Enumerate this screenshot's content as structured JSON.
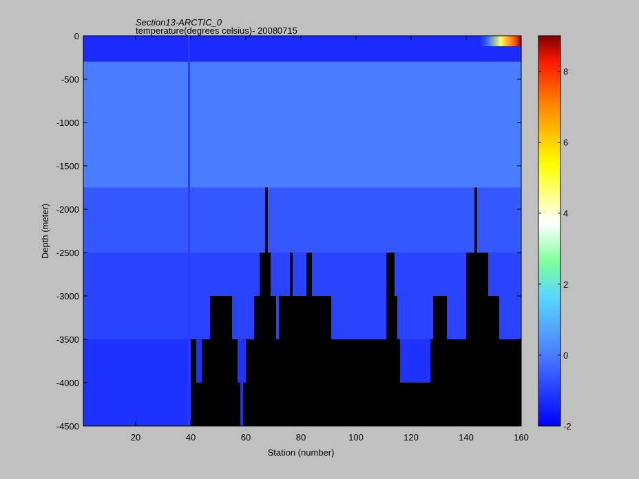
{
  "chart_data": {
    "type": "heatmap",
    "title": "Section13-ARCTIC_0",
    "subtitle": "temperature(degrees  celsius)- 20080715",
    "xlabel": "Station (number)",
    "ylabel": "Depth (meter)",
    "xlim": [
      1,
      160
    ],
    "ylim": [
      -4500,
      0
    ],
    "x_ticks": [
      20,
      40,
      60,
      80,
      100,
      120,
      140,
      160
    ],
    "y_ticks": [
      0,
      -500,
      -1000,
      -1500,
      -2000,
      -2500,
      -3000,
      -3500,
      -4000,
      -4500
    ],
    "colorbar": {
      "min": -2,
      "max": 9,
      "ticks": [
        -2,
        0,
        2,
        4,
        6,
        8
      ],
      "colormap": "jet"
    },
    "highlight_station": 39,
    "bathymetry_depth_by_station": [
      [
        1,
        -4500
      ],
      [
        39,
        -4500
      ],
      [
        40,
        -3500
      ],
      [
        42,
        -4000
      ],
      [
        44,
        -3500
      ],
      [
        46,
        -3500
      ],
      [
        47,
        -3000
      ],
      [
        55,
        -3500
      ],
      [
        57,
        -4000
      ],
      [
        58,
        -4500
      ],
      [
        59,
        -4000
      ],
      [
        60,
        -3500
      ],
      [
        63,
        -3000
      ],
      [
        65,
        -2500
      ],
      [
        67,
        -1750
      ],
      [
        68,
        -2500
      ],
      [
        69,
        -3000
      ],
      [
        71,
        -3500
      ],
      [
        72,
        -3000
      ],
      [
        76,
        -2500
      ],
      [
        77,
        -3000
      ],
      [
        82,
        -2500
      ],
      [
        84,
        -3000
      ],
      [
        91,
        -3500
      ],
      [
        111,
        -2500
      ],
      [
        114,
        -3000
      ],
      [
        115,
        -3500
      ],
      [
        116,
        -4000
      ],
      [
        119,
        -4000
      ],
      [
        127,
        -3500
      ],
      [
        128,
        -3000
      ],
      [
        133,
        -3500
      ],
      [
        140,
        -2500
      ],
      [
        143,
        -1750
      ],
      [
        144,
        -2500
      ],
      [
        148,
        -3000
      ],
      [
        152,
        -3500
      ],
      [
        160,
        -3500
      ]
    ],
    "ocean_layers": [
      {
        "top": 0,
        "bottom": -300,
        "temperature": -1.3
      },
      {
        "top": -300,
        "bottom": -1750,
        "temperature": 0.0
      },
      {
        "top": -1750,
        "bottom": -2500,
        "temperature": -0.6
      },
      {
        "top": -2500,
        "bottom": -3500,
        "temperature": -0.9
      },
      {
        "top": -3500,
        "bottom": -4500,
        "temperature": -1.2
      }
    ],
    "surface_warm_region": {
      "station_from": 145,
      "station_to": 160,
      "temperature": 8
    }
  }
}
